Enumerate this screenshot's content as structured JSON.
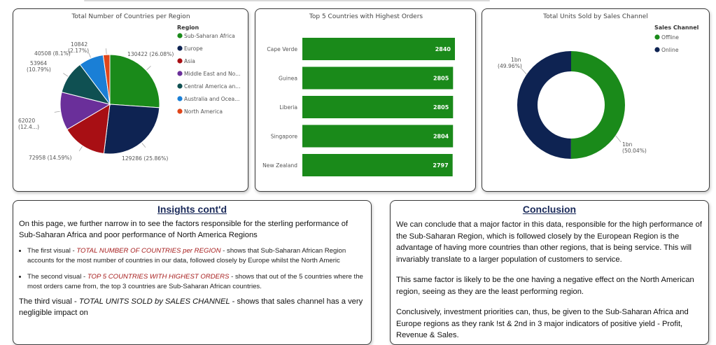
{
  "colors": {
    "green": "#1a8a1a",
    "navy": "#0e2352",
    "red": "#a80f14",
    "purple": "#6a2f9a",
    "teal": "#0f5052",
    "blue": "#1a7fd6",
    "orange": "#e0461a"
  },
  "chart_data": [
    {
      "type": "pie",
      "title": "Total Number of Countries per Region",
      "legend_title": "Region",
      "legend_position": "right",
      "categories": [
        "Sub-Saharan Africa",
        "Europe",
        "Asia",
        "Middle East and No...",
        "Central America an...",
        "Australia and Ocea...",
        "North America"
      ],
      "values": [
        130422,
        129286,
        72958,
        62020,
        53964,
        40508,
        10842
      ],
      "data_labels": [
        "130422 (26.08%)",
        "129286 (25.86%)",
        "72958 (14.59%)",
        "62020 (12.4...)",
        "53964 (10.79%)",
        "40508 (8.1%)",
        "10842 (2.17%)"
      ]
    },
    {
      "type": "bar",
      "orientation": "horizontal",
      "title": "Top 5 Countries with Highest Orders",
      "categories": [
        "Cape Verde",
        "Guinea",
        "Liberia",
        "Singapore",
        "New Zealand"
      ],
      "values": [
        2840,
        2805,
        2805,
        2804,
        2797
      ],
      "xlim": [
        0,
        2840
      ]
    },
    {
      "type": "pie",
      "donut": true,
      "title": "Total Units Sold by Sales Channel",
      "legend_title": "Sales Channel",
      "legend_position": "top-right",
      "categories": [
        "Offline",
        "Online"
      ],
      "values": [
        50.04,
        49.96
      ],
      "data_labels": [
        [
          "1bn",
          "(50.04%)"
        ],
        [
          "1bn",
          "(49.96%)"
        ]
      ]
    }
  ],
  "insights": {
    "heading": "Insights cont'd",
    "intro": "On this page, we further narrow in to see the factors responsible for the sterling performance of Sub-Saharan Africa and poor performance of North America Regions",
    "bullet1_pre": "The first visual - ",
    "bullet1_em": "TOTAL NUMBER OF COUNTRIES per REGION",
    "bullet1_post": " - shows that Sub-Saharan African Region accounts for the most number of countries in our data, followed closely by Europe whilst the North Americ",
    "bullet2_pre": "The second visual - ",
    "bullet2_em": "TOP 5 COUNTRIES WITH HIGHEST ORDERS",
    "bullet2_post": " - shows that out of the 5 countries where the most orders came from, the top 3 countries are Sub-Saharan African countries.",
    "third_pre": "The third visual - ",
    "third_em": "TOTAL UNITS SOLD by SALES CHANNEL",
    "third_post": " - shows that sales channel has a very negligible impact on"
  },
  "conclusion": {
    "heading": "Conclusion",
    "p1": "We can conclude that a major factor in this data, responsible for the high performance of the Sub-Saharan Region, which is followed closely by the European Region is the advantage of having more countries than other regions, that is being service. This will invariably translate to a larger population of customers to service.",
    "p2": "This same factor is likely to be the one having a negative effect on the North American region, seeing as they are the least performing region.",
    "p3": "Conclusively, investment priorities can, thus, be given to the Sub-Saharan Africa and Europe regions as they rank !st & 2nd in 3 major indicators of positive yield - Profit, Revenue & Sales."
  }
}
